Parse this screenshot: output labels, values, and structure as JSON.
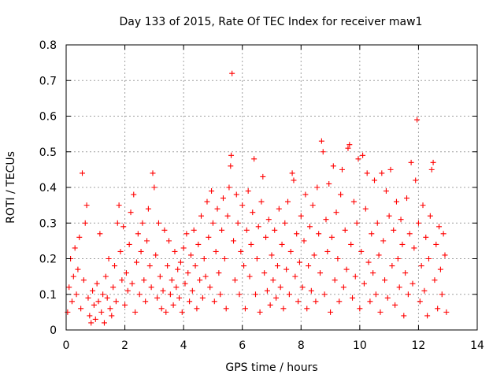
{
  "chart_data": {
    "type": "scatter",
    "title": "Day 133 of 2015, Rate Of TEC Index for receiver maw1",
    "xlabel": "GPS time / hours",
    "ylabel": "ROTI / TECUs",
    "xlim": [
      0,
      14
    ],
    "ylim": [
      0,
      0.8
    ],
    "xticks": [
      0,
      2,
      4,
      6,
      8,
      10,
      12,
      14
    ],
    "yticks": [
      0,
      0.1,
      0.2,
      0.3,
      0.4,
      0.5,
      0.6,
      0.7,
      0.8
    ],
    "ytick_labels": [
      "0",
      "0.1",
      "0.2",
      "0.3",
      "0.4",
      "0.5",
      "0.6",
      "0.7",
      "0.8"
    ],
    "grid": true,
    "marker": "plus",
    "color": "#ff0000",
    "series": [
      {
        "points": [
          [
            0.05,
            0.05
          ],
          [
            0.1,
            0.12
          ],
          [
            0.15,
            0.2
          ],
          [
            0.2,
            0.08
          ],
          [
            0.25,
            0.15
          ],
          [
            0.3,
            0.23
          ],
          [
            0.35,
            0.1
          ],
          [
            0.4,
            0.17
          ],
          [
            0.45,
            0.26
          ],
          [
            0.5,
            0.06
          ],
          [
            0.55,
            0.44
          ],
          [
            0.6,
            0.14
          ],
          [
            0.65,
            0.3
          ],
          [
            0.7,
            0.35
          ],
          [
            0.75,
            0.09
          ],
          [
            0.8,
            0.04
          ],
          [
            0.85,
            0.02
          ],
          [
            0.9,
            0.11
          ],
          [
            0.95,
            0.07
          ],
          [
            1.0,
            0.03
          ],
          [
            1.05,
            0.13
          ],
          [
            1.1,
            0.08
          ],
          [
            1.15,
            0.27
          ],
          [
            1.2,
            0.05
          ],
          [
            1.25,
            0.1
          ],
          [
            1.3,
            0.02
          ],
          [
            1.35,
            0.15
          ],
          [
            1.4,
            0.09
          ],
          [
            1.45,
            0.2
          ],
          [
            1.5,
            0.06
          ],
          [
            1.55,
            0.04
          ],
          [
            1.6,
            0.12
          ],
          [
            1.65,
            0.18
          ],
          [
            1.7,
            0.08
          ],
          [
            1.75,
            0.3
          ],
          [
            1.8,
            0.35
          ],
          [
            1.85,
            0.22
          ],
          [
            1.9,
            0.14
          ],
          [
            1.95,
            0.29
          ],
          [
            2.0,
            0.07
          ],
          [
            2.05,
            0.16
          ],
          [
            2.1,
            0.11
          ],
          [
            2.15,
            0.24
          ],
          [
            2.2,
            0.33
          ],
          [
            2.25,
            0.13
          ],
          [
            2.3,
            0.38
          ],
          [
            2.35,
            0.05
          ],
          [
            2.4,
            0.19
          ],
          [
            2.45,
            0.27
          ],
          [
            2.5,
            0.1
          ],
          [
            2.55,
            0.22
          ],
          [
            2.6,
            0.3
          ],
          [
            2.65,
            0.14
          ],
          [
            2.7,
            0.08
          ],
          [
            2.75,
            0.25
          ],
          [
            2.8,
            0.34
          ],
          [
            2.85,
            0.18
          ],
          [
            2.9,
            0.12
          ],
          [
            2.95,
            0.44
          ],
          [
            3.0,
            0.4
          ],
          [
            3.05,
            0.21
          ],
          [
            3.1,
            0.09
          ],
          [
            3.15,
            0.3
          ],
          [
            3.2,
            0.15
          ],
          [
            3.25,
            0.06
          ],
          [
            3.3,
            0.11
          ],
          [
            3.35,
            0.28
          ],
          [
            3.4,
            0.05
          ],
          [
            3.45,
            0.18
          ],
          [
            3.5,
            0.25
          ],
          [
            3.55,
            0.1
          ],
          [
            3.6,
            0.14
          ],
          [
            3.65,
            0.07
          ],
          [
            3.7,
            0.22
          ],
          [
            3.75,
            0.12
          ],
          [
            3.8,
            0.17
          ],
          [
            3.85,
            0.09
          ],
          [
            3.9,
            0.19
          ],
          [
            3.95,
            0.05
          ],
          [
            4.0,
            0.23
          ],
          [
            4.05,
            0.13
          ],
          [
            4.1,
            0.27
          ],
          [
            4.15,
            0.16
          ],
          [
            4.2,
            0.08
          ],
          [
            4.25,
            0.21
          ],
          [
            4.3,
            0.11
          ],
          [
            4.35,
            0.28
          ],
          [
            4.4,
            0.18
          ],
          [
            4.45,
            0.06
          ],
          [
            4.5,
            0.24
          ],
          [
            4.55,
            0.14
          ],
          [
            4.6,
            0.32
          ],
          [
            4.65,
            0.09
          ],
          [
            4.7,
            0.2
          ],
          [
            4.75,
            0.15
          ],
          [
            4.8,
            0.36
          ],
          [
            4.85,
            0.26
          ],
          [
            4.9,
            0.12
          ],
          [
            4.95,
            0.39
          ],
          [
            5.0,
            0.3
          ],
          [
            5.05,
            0.08
          ],
          [
            5.1,
            0.22
          ],
          [
            5.15,
            0.34
          ],
          [
            5.2,
            0.16
          ],
          [
            5.25,
            0.1
          ],
          [
            5.3,
            0.28
          ],
          [
            5.35,
            0.37
          ],
          [
            5.4,
            0.2
          ],
          [
            5.45,
            0.06
          ],
          [
            5.5,
            0.32
          ],
          [
            5.55,
            0.4
          ],
          [
            5.6,
            0.46
          ],
          [
            5.62,
            0.49
          ],
          [
            5.65,
            0.72
          ],
          [
            5.7,
            0.25
          ],
          [
            5.75,
            0.14
          ],
          [
            5.8,
            0.38
          ],
          [
            5.85,
            0.3
          ],
          [
            5.9,
            0.1
          ],
          [
            5.95,
            0.22
          ],
          [
            6.0,
            0.35
          ],
          [
            6.05,
            0.18
          ],
          [
            6.1,
            0.06
          ],
          [
            6.15,
            0.28
          ],
          [
            6.2,
            0.39
          ],
          [
            6.25,
            0.15
          ],
          [
            6.3,
            0.24
          ],
          [
            6.35,
            0.33
          ],
          [
            6.4,
            0.48
          ],
          [
            6.45,
            0.1
          ],
          [
            6.5,
            0.2
          ],
          [
            6.55,
            0.29
          ],
          [
            6.6,
            0.05
          ],
          [
            6.65,
            0.36
          ],
          [
            6.7,
            0.43
          ],
          [
            6.75,
            0.16
          ],
          [
            6.8,
            0.26
          ],
          [
            6.85,
            0.11
          ],
          [
            6.9,
            0.31
          ],
          [
            6.95,
            0.07
          ],
          [
            7.0,
            0.21
          ],
          [
            7.05,
            0.14
          ],
          [
            7.1,
            0.28
          ],
          [
            7.15,
            0.09
          ],
          [
            7.2,
            0.18
          ],
          [
            7.25,
            0.34
          ],
          [
            7.3,
            0.12
          ],
          [
            7.35,
            0.24
          ],
          [
            7.4,
            0.06
          ],
          [
            7.45,
            0.3
          ],
          [
            7.5,
            0.17
          ],
          [
            7.55,
            0.36
          ],
          [
            7.6,
            0.1
          ],
          [
            7.65,
            0.22
          ],
          [
            7.7,
            0.44
          ],
          [
            7.75,
            0.42
          ],
          [
            7.8,
            0.15
          ],
          [
            7.85,
            0.27
          ],
          [
            7.9,
            0.08
          ],
          [
            7.95,
            0.19
          ],
          [
            8.0,
            0.32
          ],
          [
            8.05,
            0.12
          ],
          [
            8.1,
            0.25
          ],
          [
            8.15,
            0.38
          ],
          [
            8.2,
            0.06
          ],
          [
            8.25,
            0.18
          ],
          [
            8.3,
            0.29
          ],
          [
            8.35,
            0.11
          ],
          [
            8.4,
            0.35
          ],
          [
            8.45,
            0.21
          ],
          [
            8.5,
            0.08
          ],
          [
            8.55,
            0.4
          ],
          [
            8.6,
            0.27
          ],
          [
            8.65,
            0.16
          ],
          [
            8.7,
            0.53
          ],
          [
            8.75,
            0.5
          ],
          [
            8.8,
            0.1
          ],
          [
            8.85,
            0.31
          ],
          [
            8.9,
            0.22
          ],
          [
            8.95,
            0.41
          ],
          [
            9.0,
            0.05
          ],
          [
            9.05,
            0.26
          ],
          [
            9.1,
            0.46
          ],
          [
            9.15,
            0.14
          ],
          [
            9.2,
            0.33
          ],
          [
            9.25,
            0.2
          ],
          [
            9.3,
            0.08
          ],
          [
            9.35,
            0.38
          ],
          [
            9.4,
            0.45
          ],
          [
            9.45,
            0.12
          ],
          [
            9.5,
            0.28
          ],
          [
            9.55,
            0.17
          ],
          [
            9.6,
            0.51
          ],
          [
            9.65,
            0.52
          ],
          [
            9.7,
            0.24
          ],
          [
            9.75,
            0.09
          ],
          [
            9.8,
            0.36
          ],
          [
            9.85,
            0.15
          ],
          [
            9.9,
            0.3
          ],
          [
            9.95,
            0.48
          ],
          [
            10.0,
            0.06
          ],
          [
            10.05,
            0.22
          ],
          [
            10.1,
            0.49
          ],
          [
            10.15,
            0.13
          ],
          [
            10.2,
            0.34
          ],
          [
            10.25,
            0.44
          ],
          [
            10.3,
            0.19
          ],
          [
            10.35,
            0.08
          ],
          [
            10.4,
            0.27
          ],
          [
            10.45,
            0.16
          ],
          [
            10.5,
            0.42
          ],
          [
            10.55,
            0.1
          ],
          [
            10.6,
            0.3
          ],
          [
            10.65,
            0.21
          ],
          [
            10.7,
            0.05
          ],
          [
            10.75,
            0.44
          ],
          [
            10.8,
            0.25
          ],
          [
            10.85,
            0.14
          ],
          [
            10.9,
            0.39
          ],
          [
            10.95,
            0.09
          ],
          [
            11.0,
            0.32
          ],
          [
            11.05,
            0.45
          ],
          [
            11.1,
            0.18
          ],
          [
            11.15,
            0.28
          ],
          [
            11.2,
            0.07
          ],
          [
            11.25,
            0.36
          ],
          [
            11.3,
            0.2
          ],
          [
            11.35,
            0.12
          ],
          [
            11.4,
            0.31
          ],
          [
            11.45,
            0.24
          ],
          [
            11.5,
            0.04
          ],
          [
            11.55,
            0.16
          ],
          [
            11.6,
            0.37
          ],
          [
            11.65,
            0.1
          ],
          [
            11.7,
            0.27
          ],
          [
            11.75,
            0.47
          ],
          [
            11.8,
            0.13
          ],
          [
            11.85,
            0.23
          ],
          [
            11.9,
            0.42
          ],
          [
            11.95,
            0.59
          ],
          [
            12.0,
            0.3
          ],
          [
            12.05,
            0.08
          ],
          [
            12.1,
            0.18
          ],
          [
            12.15,
            0.35
          ],
          [
            12.2,
            0.11
          ],
          [
            12.25,
            0.26
          ],
          [
            12.3,
            0.04
          ],
          [
            12.35,
            0.2
          ],
          [
            12.4,
            0.32
          ],
          [
            12.45,
            0.45
          ],
          [
            12.5,
            0.47
          ],
          [
            12.55,
            0.14
          ],
          [
            12.6,
            0.24
          ],
          [
            12.65,
            0.06
          ],
          [
            12.7,
            0.29
          ],
          [
            12.75,
            0.17
          ],
          [
            12.8,
            0.1
          ],
          [
            12.85,
            0.27
          ],
          [
            12.9,
            0.21
          ],
          [
            12.95,
            0.05
          ]
        ]
      }
    ]
  }
}
